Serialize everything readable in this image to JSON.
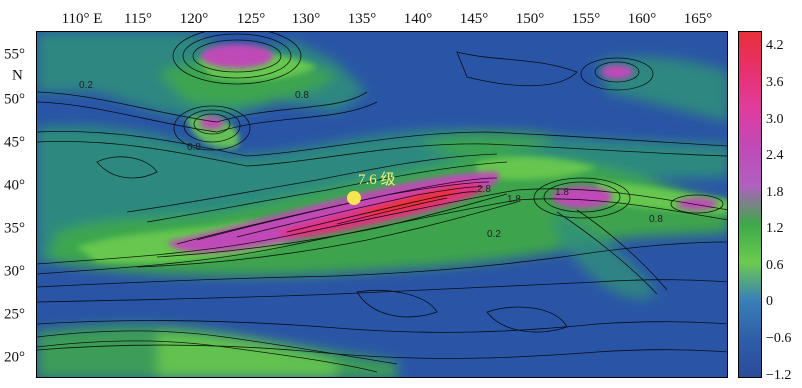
{
  "map": {
    "lon_labels": [
      "110° E",
      "115°",
      "120°",
      "125°",
      "130°",
      "135°",
      "140°",
      "145°",
      "150°",
      "155°",
      "160°",
      "165°"
    ],
    "lat_labels": [
      {
        "text": "55°",
        "suffix": "N"
      },
      {
        "text": "50°",
        "suffix": ""
      },
      {
        "text": "45°",
        "suffix": ""
      },
      {
        "text": "40°",
        "suffix": ""
      },
      {
        "text": "35°",
        "suffix": ""
      },
      {
        "text": "30°",
        "suffix": ""
      },
      {
        "text": "25°",
        "suffix": ""
      },
      {
        "text": "20°",
        "suffix": ""
      }
    ],
    "contour_labels": [
      "0.2",
      "0.8",
      "1.8",
      "2.8",
      "0.8",
      "0.2",
      "1.8",
      "0.8"
    ],
    "event": {
      "label": "7.6 级",
      "lon": 136.5,
      "lat": 38.3,
      "color": "#f4e650"
    }
  },
  "colorbar": {
    "ticks": [
      "4.2",
      "3.6",
      "3.0",
      "2.4",
      "1.8",
      "1.2",
      "0.6",
      "0",
      "−0.6",
      "−1.2"
    ],
    "colors": [
      "#e8303a",
      "#e8306e",
      "#e03c9c",
      "#c04ab8",
      "#b15fc0",
      "#3ea84a",
      "#6ccb4f",
      "#3a7fb8",
      "#2f5fa8",
      "#2a4c9a"
    ]
  }
}
